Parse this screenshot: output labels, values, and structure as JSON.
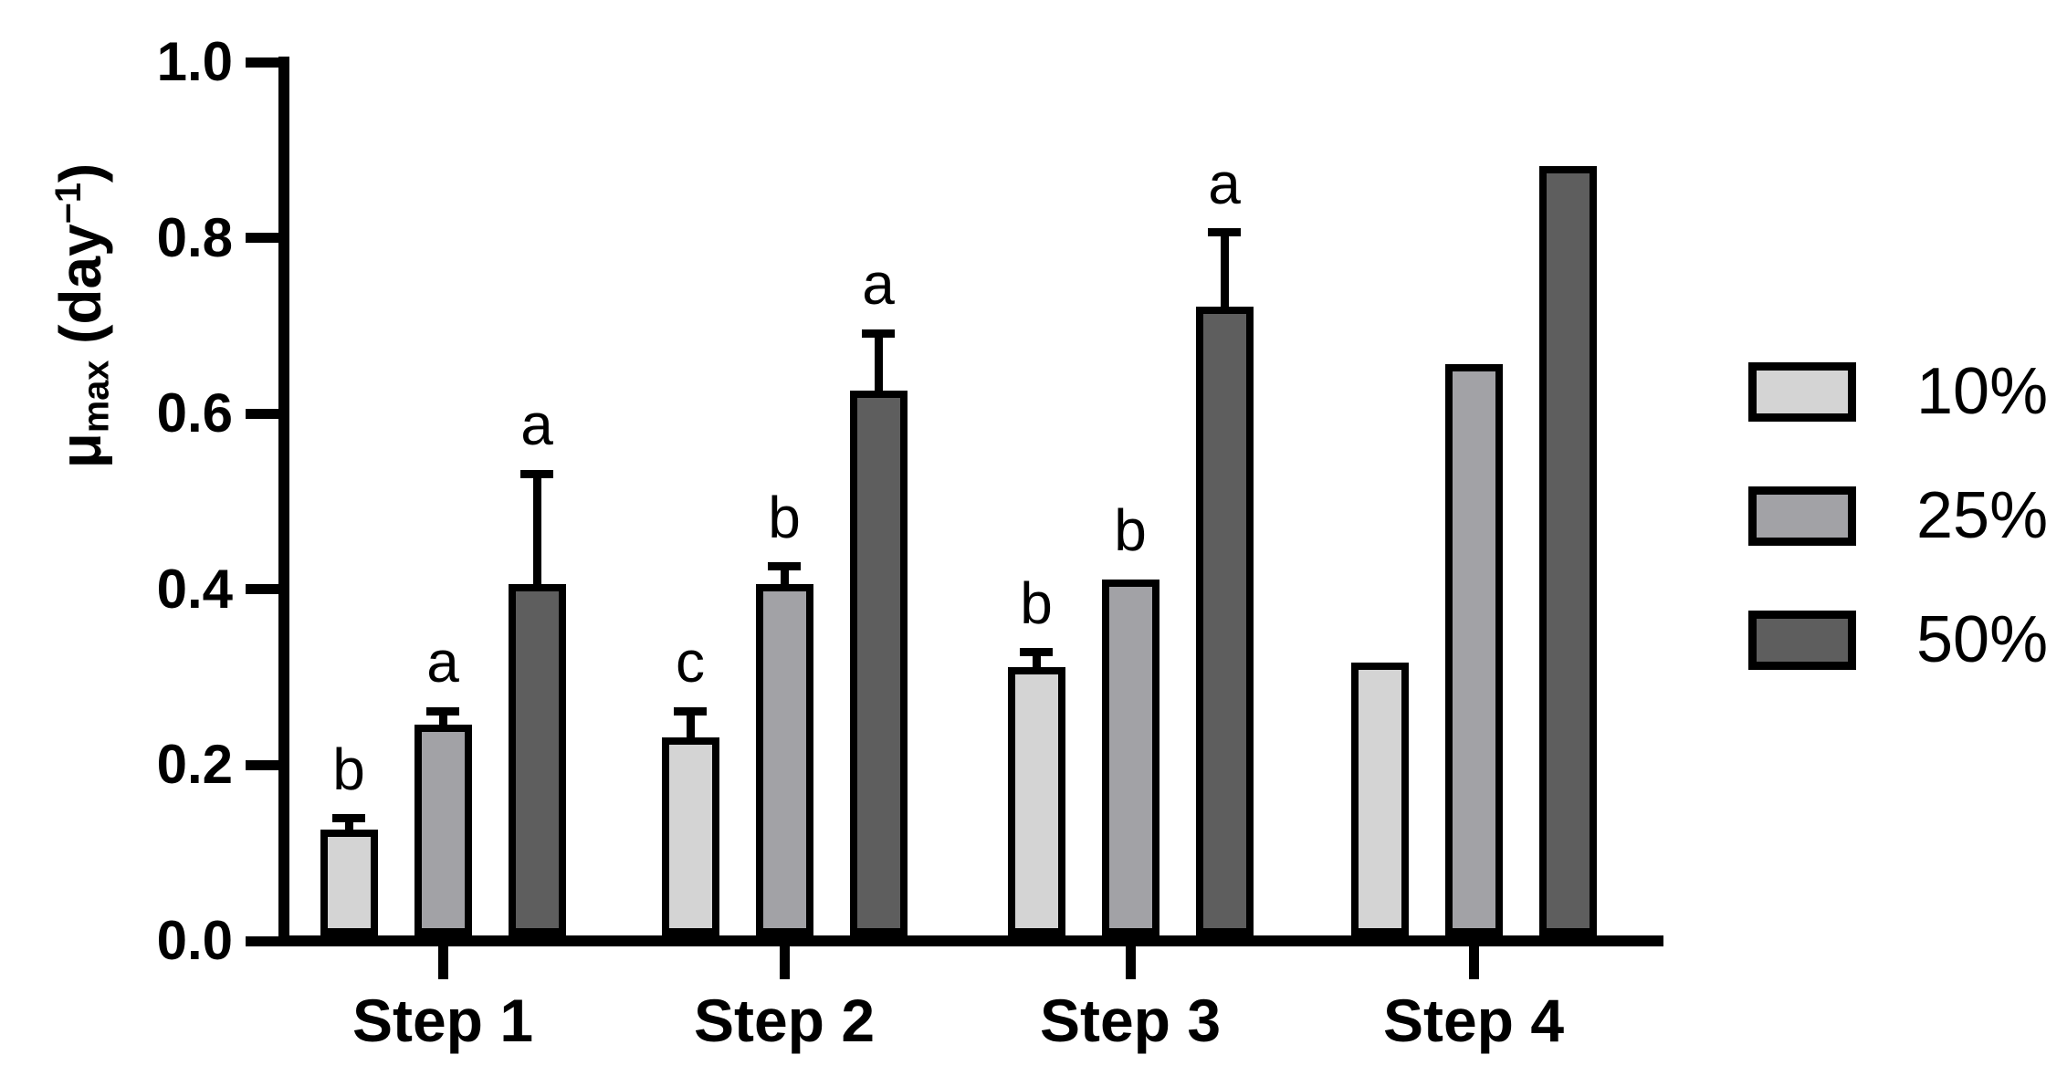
{
  "chart_data": {
    "type": "bar",
    "title": "",
    "ylabel": "μmax (day−1)",
    "ylabel_parts": {
      "mu": "μ",
      "sub": "max",
      "mid": " (day",
      "sup": "−1",
      "end": ")"
    },
    "xlabel": "",
    "categories": [
      "Step 1",
      "Step 2",
      "Step 3",
      "Step 4"
    ],
    "series": [
      {
        "name": "10%",
        "color": "#d4d4d4",
        "values": [
          0.12,
          0.225,
          0.305,
          0.31
        ],
        "errors_plus": [
          0.013,
          0.03,
          0.017,
          null
        ],
        "letters": [
          "b",
          "c",
          "b",
          null
        ]
      },
      {
        "name": "25%",
        "color": "#a2a2a6",
        "values": [
          0.24,
          0.4,
          0.405,
          0.65
        ],
        "errors_plus": [
          0.015,
          0.02,
          null,
          null
        ],
        "letters": [
          "a",
          "b",
          "b",
          null
        ]
      },
      {
        "name": "50%",
        "color": "#5e5e5e",
        "values": [
          0.4,
          0.62,
          0.715,
          0.875
        ],
        "errors_plus": [
          0.125,
          0.065,
          0.085,
          null
        ],
        "letters": [
          "a",
          "a",
          "a",
          null
        ]
      }
    ],
    "ylim": [
      0.0,
      1.0
    ],
    "yticks": [
      "0.0",
      "0.2",
      "0.4",
      "0.6",
      "0.8",
      "1.0"
    ],
    "grid": false,
    "error_bars": "upper-only",
    "legend_position": "right",
    "bar_outline_color": "#000000",
    "axis_color": "#000000"
  }
}
